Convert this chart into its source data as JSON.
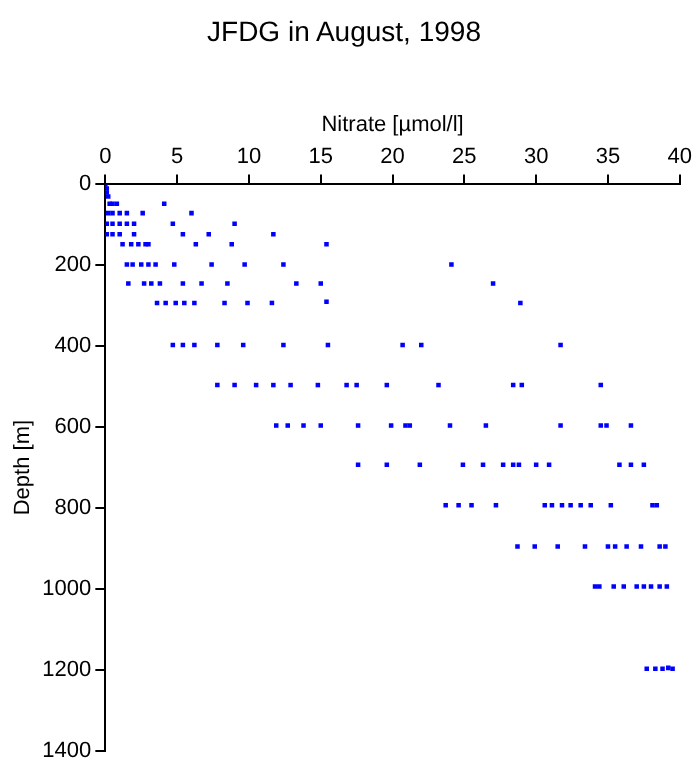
{
  "chart_data": {
    "type": "scatter",
    "title": "JFDG in August, 1998",
    "xlabel": "Nitrate [µmol/l]",
    "ylabel": "Depth [m]",
    "xlim": [
      0,
      40
    ],
    "xticks": [
      0,
      5,
      10,
      15,
      20,
      25,
      30,
      35,
      40
    ],
    "ylim": [
      1400,
      0
    ],
    "yticks": [
      0,
      200,
      400,
      600,
      800,
      1000,
      1200,
      1400
    ],
    "grid": false,
    "legend": false,
    "marker": "square",
    "series": [
      {
        "color": "#0000ff",
        "x": [
          0,
          0.1,
          0.1,
          0.2,
          0.3,
          0.5,
          0.8,
          4.1,
          0.2,
          0.5,
          1,
          1.5,
          2.6,
          6.0,
          0.1,
          0.5,
          1,
          1.5,
          2,
          4.7,
          9.0,
          0.1,
          0.5,
          1,
          2,
          5.4,
          7.2,
          11.7,
          1.2,
          1.8,
          2.3,
          2.8,
          3,
          6.3,
          8.8,
          15.4,
          1.5,
          1.9,
          2.5,
          3,
          3.5,
          4.8,
          7.4,
          9.7,
          12.4,
          24.1,
          1.6,
          2.7,
          3.2,
          3.8,
          5.4,
          6.7,
          8.5,
          13.3,
          15.0,
          27.0,
          3.6,
          4.2,
          4.9,
          5.5,
          6.2,
          8.3,
          9.9,
          11.6,
          15.4,
          28.9,
          4.7,
          5.4,
          6.2,
          7.8,
          9.6,
          12.4,
          15.5,
          20.7,
          22.0,
          31.7,
          7.8,
          9.0,
          10.5,
          11.7,
          12.9,
          14.8,
          16.8,
          17.5,
          19.6,
          23.2,
          28.4,
          29.0,
          34.5,
          11.9,
          12.7,
          13.8,
          15.0,
          17.6,
          19.9,
          20.9,
          21.2,
          24.0,
          26.5,
          31.7,
          34.5,
          34.9,
          36.6,
          17.6,
          19.6,
          21.9,
          24.9,
          26.3,
          27.7,
          28.4,
          28.8,
          30.0,
          30.9,
          35.8,
          36.6,
          37.5,
          23.7,
          24.6,
          25.5,
          27.2,
          30.6,
          31.1,
          31.8,
          32.4,
          33.1,
          33.8,
          35.2,
          38.1,
          38.4,
          28.7,
          29.9,
          31.5,
          33.4,
          35.0,
          35.5,
          36.3,
          37.3,
          38.6,
          39.0,
          34.1,
          34.4,
          35.4,
          36.1,
          37.0,
          37.5,
          38.0,
          38.6,
          39.1,
          37.7,
          38.3,
          38.8,
          39.2,
          39.5
        ],
        "values": [
          0,
          10,
          20,
          30,
          48,
          48,
          48,
          48,
          71,
          71,
          71,
          71,
          71,
          71,
          97,
          97,
          97,
          97,
          97,
          97,
          97,
          123,
          123,
          123,
          123,
          123,
          123,
          123,
          148,
          148,
          148,
          148,
          148,
          148,
          148,
          148,
          198,
          198,
          198,
          198,
          198,
          198,
          198,
          198,
          198,
          198,
          245,
          245,
          245,
          245,
          245,
          245,
          245,
          245,
          245,
          245,
          293,
          293,
          293,
          293,
          293,
          293,
          293,
          293,
          290,
          293,
          397,
          397,
          397,
          397,
          397,
          397,
          397,
          397,
          397,
          397,
          496,
          496,
          496,
          496,
          496,
          496,
          496,
          496,
          496,
          496,
          496,
          496,
          496,
          596,
          596,
          596,
          596,
          596,
          596,
          596,
          596,
          596,
          596,
          596,
          596,
          596,
          596,
          693,
          693,
          693,
          693,
          693,
          693,
          693,
          693,
          693,
          693,
          693,
          693,
          693,
          793,
          793,
          793,
          793,
          793,
          793,
          793,
          793,
          793,
          793,
          793,
          793,
          793,
          895,
          895,
          895,
          895,
          895,
          895,
          895,
          895,
          895,
          895,
          994,
          994,
          994,
          994,
          994,
          994,
          994,
          994,
          994,
          1197,
          1197,
          1197,
          1195,
          1197
        ]
      }
    ]
  }
}
